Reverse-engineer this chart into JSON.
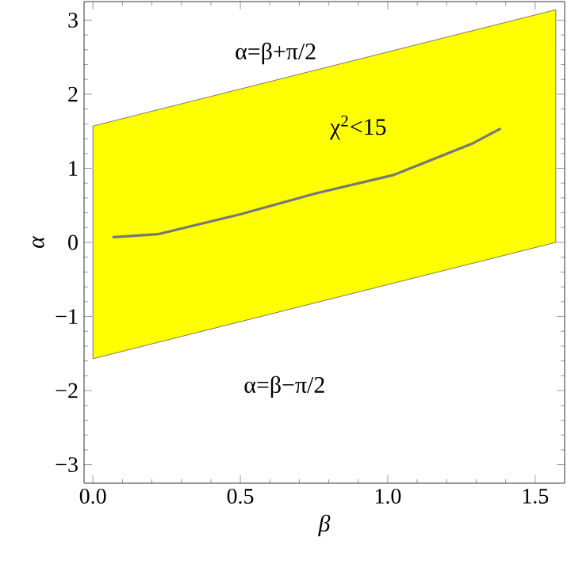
{
  "chart_data": {
    "type": "line",
    "xlabel": "β",
    "ylabel": "α",
    "xlim": [
      -0.03,
      1.6
    ],
    "ylim": [
      -3.25,
      3.25
    ],
    "xticks": [
      {
        "value": 0,
        "label": "0.0"
      },
      {
        "value": 0.5,
        "label": "0.5"
      },
      {
        "value": 1,
        "label": "1.0"
      },
      {
        "value": 1.5,
        "label": "1.5"
      }
    ],
    "yticks": [
      {
        "value": -3,
        "label": "−3"
      },
      {
        "value": -2,
        "label": "−2"
      },
      {
        "value": -1,
        "label": "−1"
      },
      0,
      1,
      2,
      3
    ],
    "series": [
      {
        "color": "#ffff00",
        "x": [
          0,
          1.57
        ],
        "lower": [
          -1.57,
          0
        ],
        "upper": [
          1.57,
          3.14
        ],
        "values": [
          null,
          null
        ]
      },
      {
        "color": "#777777",
        "x": [
          0.07,
          0.22,
          0.5,
          0.755,
          1.02,
          1.29,
          1.38
        ],
        "values": [
          0.07,
          0.11,
          0.38,
          0.66,
          0.91,
          1.34,
          1.53
        ]
      }
    ],
    "annotations": [
      "α=β+π/2",
      "χ$^{2}$<15",
      "α=β−π/2"
    ],
    "grid": false
  }
}
